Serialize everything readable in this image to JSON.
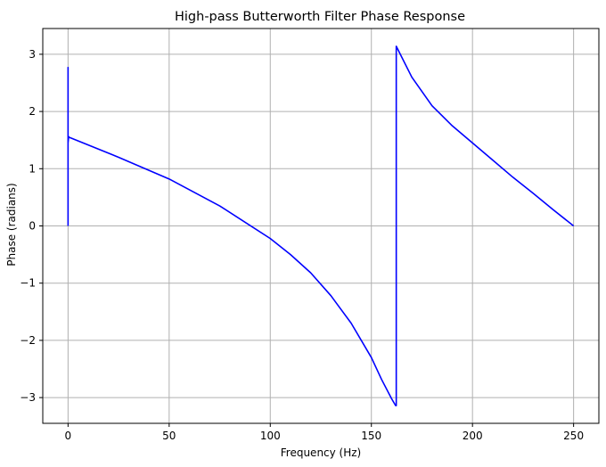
{
  "chart_data": {
    "type": "line",
    "title": "High-pass Butterworth Filter Phase Response",
    "xlabel": "Frequency (Hz)",
    "ylabel": "Phase (radians)",
    "xlim": [
      -12.5,
      262.5
    ],
    "ylim": [
      -3.45,
      3.45
    ],
    "xticks": [
      0,
      50,
      100,
      150,
      200,
      250
    ],
    "yticks": [
      -3,
      -2,
      -1,
      0,
      1,
      2,
      3
    ],
    "ytick_labels": [
      "−3",
      "−2",
      "−1",
      "0",
      "1",
      "2",
      "3"
    ],
    "grid": true,
    "line_color": "#0000ff",
    "series": [
      {
        "x": [
          0,
          0,
          0,
          0,
          0.3,
          0.5,
          25,
          50,
          75,
          100,
          110,
          120,
          130,
          140,
          150,
          155,
          160,
          162,
          162.3,
          162.3,
          170,
          180,
          190,
          200,
          210,
          220,
          230,
          240,
          250
        ],
        "y": [
          0,
          2.77,
          1.4,
          1.45,
          1.56,
          1.55,
          1.2,
          0.82,
          0.35,
          -0.22,
          -0.5,
          -0.82,
          -1.22,
          -1.7,
          -2.3,
          -2.68,
          -3.02,
          -3.14,
          -3.14,
          3.14,
          2.6,
          2.1,
          1.75,
          1.45,
          1.15,
          0.85,
          0.57,
          0.28,
          0.0
        ]
      }
    ]
  }
}
